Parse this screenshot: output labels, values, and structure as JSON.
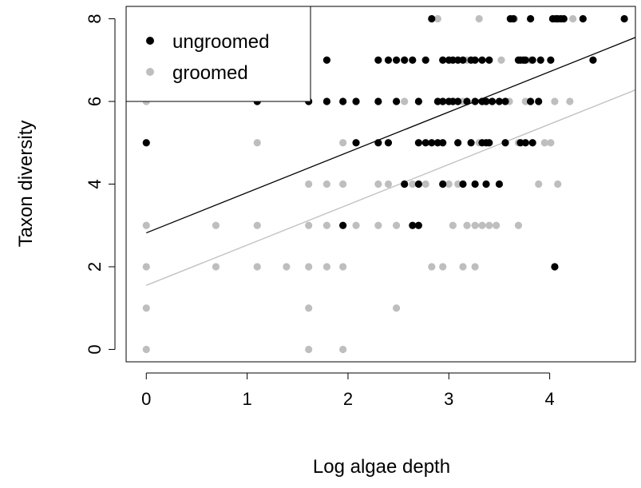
{
  "chart_data": {
    "type": "scatter",
    "title": "",
    "xlabel": "Log algae depth",
    "ylabel": "Taxon diversity",
    "xlim": [
      -0.2,
      4.85
    ],
    "ylim": [
      -0.3,
      8.3
    ],
    "xticks": [
      "0",
      "1",
      "2",
      "3",
      "4"
    ],
    "yticks": [
      "0",
      "2",
      "4",
      "6",
      "8"
    ],
    "grid": false,
    "legend": {
      "position": "top-left",
      "boxed": true
    },
    "colors": {
      "ungroomed": "#000000",
      "groomed": "#bebebe"
    },
    "series": [
      {
        "name": "ungroomed",
        "color": "#000000",
        "points": [
          [
            0,
            5
          ],
          [
            1.1,
            6
          ],
          [
            1.61,
            6
          ],
          [
            1.79,
            6
          ],
          [
            1.79,
            7
          ],
          [
            1.95,
            6
          ],
          [
            2.08,
            6
          ],
          [
            2.08,
            5
          ],
          [
            2.3,
            7
          ],
          [
            2.3,
            6
          ],
          [
            2.3,
            5
          ],
          [
            2.4,
            7
          ],
          [
            2.4,
            5
          ],
          [
            2.48,
            7
          ],
          [
            2.48,
            6
          ],
          [
            2.56,
            7
          ],
          [
            2.56,
            4
          ],
          [
            2.64,
            7
          ],
          [
            2.64,
            3
          ],
          [
            2.7,
            6
          ],
          [
            2.7,
            5
          ],
          [
            2.7,
            4
          ],
          [
            2.7,
            3
          ],
          [
            2.77,
            7
          ],
          [
            2.77,
            5
          ],
          [
            2.83,
            8
          ],
          [
            2.83,
            5
          ],
          [
            2.89,
            6
          ],
          [
            2.89,
            5
          ],
          [
            2.94,
            7
          ],
          [
            2.94,
            6
          ],
          [
            2.94,
            5
          ],
          [
            2.94,
            4
          ],
          [
            3.0,
            7
          ],
          [
            3.0,
            6
          ],
          [
            3.04,
            7
          ],
          [
            3.04,
            6
          ],
          [
            3.09,
            7
          ],
          [
            3.09,
            6
          ],
          [
            3.09,
            5
          ],
          [
            3.14,
            7
          ],
          [
            3.14,
            4
          ],
          [
            3.18,
            6
          ],
          [
            3.22,
            7
          ],
          [
            3.22,
            5
          ],
          [
            3.26,
            7
          ],
          [
            3.26,
            6
          ],
          [
            3.26,
            4
          ],
          [
            3.33,
            7
          ],
          [
            3.33,
            6
          ],
          [
            3.33,
            5
          ],
          [
            3.37,
            6
          ],
          [
            3.37,
            5
          ],
          [
            3.37,
            4
          ],
          [
            3.4,
            7
          ],
          [
            3.4,
            5
          ],
          [
            3.43,
            6
          ],
          [
            3.5,
            6
          ],
          [
            3.5,
            4
          ],
          [
            3.56,
            6
          ],
          [
            3.56,
            5
          ],
          [
            3.61,
            8
          ],
          [
            3.64,
            8
          ],
          [
            3.69,
            7
          ],
          [
            3.71,
            7
          ],
          [
            3.71,
            5
          ],
          [
            3.74,
            7
          ],
          [
            3.76,
            7
          ],
          [
            3.76,
            5
          ],
          [
            3.81,
            8
          ],
          [
            3.81,
            6
          ],
          [
            3.83,
            7
          ],
          [
            3.83,
            5
          ],
          [
            3.89,
            6
          ],
          [
            3.91,
            7
          ],
          [
            4.01,
            7
          ],
          [
            4.03,
            8
          ],
          [
            4.05,
            2
          ],
          [
            4.06,
            8
          ],
          [
            4.08,
            8
          ],
          [
            4.11,
            8
          ],
          [
            4.14,
            8
          ],
          [
            4.33,
            8
          ],
          [
            4.43,
            7
          ],
          [
            4.74,
            8
          ],
          [
            1.95,
            3
          ]
        ]
      },
      {
        "name": "groomed",
        "color": "#bebebe",
        "points": [
          [
            0,
            6
          ],
          [
            0,
            3
          ],
          [
            0,
            2
          ],
          [
            0,
            1
          ],
          [
            0,
            0
          ],
          [
            0.69,
            3
          ],
          [
            0.69,
            2
          ],
          [
            1.1,
            5
          ],
          [
            1.1,
            3
          ],
          [
            1.1,
            2
          ],
          [
            1.39,
            2
          ],
          [
            1.61,
            4
          ],
          [
            1.61,
            3
          ],
          [
            1.61,
            2
          ],
          [
            1.61,
            1
          ],
          [
            1.61,
            0
          ],
          [
            1.79,
            4
          ],
          [
            1.79,
            3
          ],
          [
            1.79,
            2
          ],
          [
            1.95,
            5
          ],
          [
            1.95,
            4
          ],
          [
            1.95,
            2
          ],
          [
            1.95,
            0
          ],
          [
            2.08,
            3
          ],
          [
            2.3,
            4
          ],
          [
            2.3,
            3
          ],
          [
            2.4,
            4
          ],
          [
            2.48,
            3
          ],
          [
            2.48,
            1
          ],
          [
            2.56,
            6
          ],
          [
            2.64,
            4
          ],
          [
            2.77,
            4
          ],
          [
            2.83,
            2
          ],
          [
            2.89,
            8
          ],
          [
            2.94,
            7
          ],
          [
            2.94,
            2
          ],
          [
            3.0,
            4
          ],
          [
            3.04,
            6
          ],
          [
            3.04,
            3
          ],
          [
            3.09,
            4
          ],
          [
            3.14,
            6
          ],
          [
            3.14,
            2
          ],
          [
            3.18,
            7
          ],
          [
            3.18,
            3
          ],
          [
            3.26,
            3
          ],
          [
            3.26,
            2
          ],
          [
            3.3,
            8
          ],
          [
            3.3,
            5
          ],
          [
            3.33,
            3
          ],
          [
            3.4,
            3
          ],
          [
            3.47,
            3
          ],
          [
            3.52,
            7
          ],
          [
            3.6,
            6
          ],
          [
            3.65,
            8
          ],
          [
            3.69,
            5
          ],
          [
            3.69,
            3
          ],
          [
            3.76,
            6
          ],
          [
            3.81,
            7
          ],
          [
            3.89,
            4
          ],
          [
            3.95,
            5
          ],
          [
            4.01,
            5
          ],
          [
            4.05,
            6
          ],
          [
            4.08,
            4
          ],
          [
            4.2,
            6
          ],
          [
            4.23,
            8
          ]
        ]
      }
    ],
    "fit_lines": [
      {
        "name": "ungroomed",
        "color": "#000000",
        "intercept": 2.82,
        "slope": 0.975
      },
      {
        "name": "groomed",
        "color": "#bebebe",
        "intercept": 1.55,
        "slope": 0.975
      }
    ]
  }
}
